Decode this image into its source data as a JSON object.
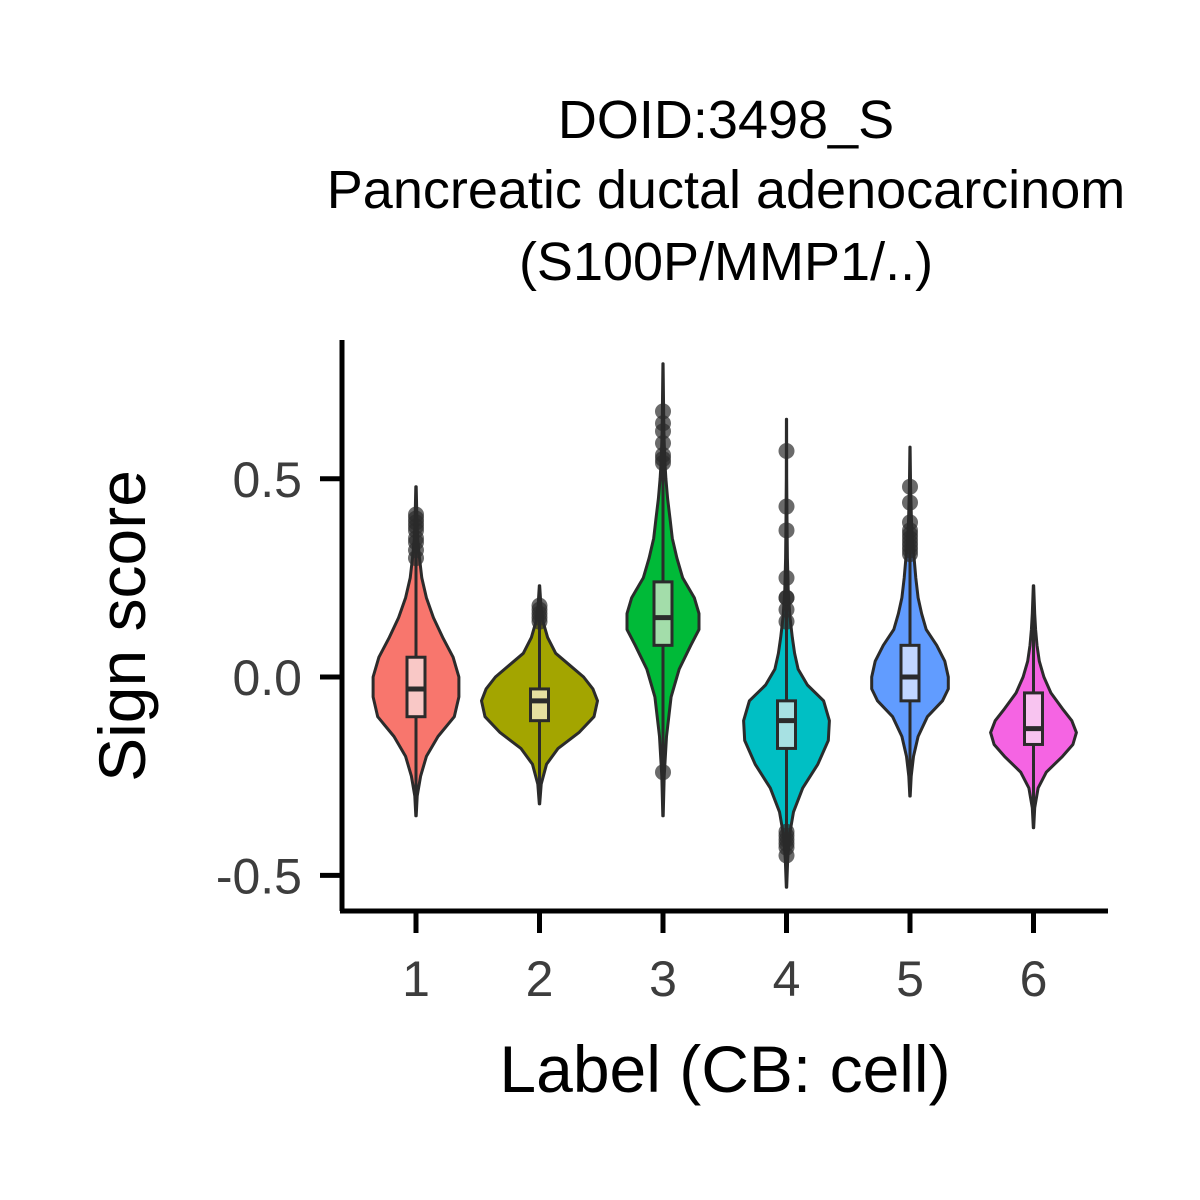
{
  "chart_data": {
    "type": "violin",
    "title": [
      "DOID:3498_S",
      "Pancreatic ductal adenocarcinom",
      "(S100P/MMP1/..)"
    ],
    "xlabel": "Label (CB: cell)",
    "ylabel": "Sign score",
    "ylim": [
      -0.59,
      0.85
    ],
    "yticks": [
      -0.5,
      0.0,
      0.5
    ],
    "ytick_labels": [
      "-0.5",
      "0.0",
      "0.5"
    ],
    "categories": [
      "1",
      "2",
      "3",
      "4",
      "5",
      "6"
    ],
    "grid": false,
    "legend": "none",
    "series": [
      {
        "category": "1",
        "color": "#F8766D",
        "box_fill": "#F9C8C6",
        "min": -0.35,
        "max": 0.48,
        "q1": -0.1,
        "median": -0.03,
        "q3": 0.05,
        "whisker_low": -0.3,
        "whisker_high": 0.28,
        "density": [
          [
            -0.35,
            0.002
          ],
          [
            -0.3,
            0.01
          ],
          [
            -0.25,
            0.04
          ],
          [
            -0.2,
            0.09
          ],
          [
            -0.15,
            0.19
          ],
          [
            -0.1,
            0.33
          ],
          [
            -0.05,
            0.37
          ],
          [
            0.0,
            0.37
          ],
          [
            0.05,
            0.32
          ],
          [
            0.1,
            0.23
          ],
          [
            0.15,
            0.15
          ],
          [
            0.2,
            0.09
          ],
          [
            0.25,
            0.05
          ],
          [
            0.3,
            0.03
          ],
          [
            0.35,
            0.015
          ],
          [
            0.4,
            0.008
          ],
          [
            0.48,
            0.002
          ]
        ],
        "outliers": [
          0.3,
          0.32,
          0.34,
          0.35,
          0.37,
          0.38,
          0.39,
          0.4,
          0.41
        ]
      },
      {
        "category": "2",
        "color": "#A3A500",
        "box_fill": "#E6E0A0",
        "min": -0.32,
        "max": 0.23,
        "q1": -0.11,
        "median": -0.06,
        "q3": -0.03,
        "whisker_low": -0.24,
        "whisker_high": 0.14,
        "density": [
          [
            -0.32,
            0.002
          ],
          [
            -0.27,
            0.015
          ],
          [
            -0.22,
            0.06
          ],
          [
            -0.18,
            0.16
          ],
          [
            -0.14,
            0.34
          ],
          [
            -0.1,
            0.47
          ],
          [
            -0.06,
            0.5
          ],
          [
            -0.03,
            0.46
          ],
          [
            0.0,
            0.38
          ],
          [
            0.03,
            0.26
          ],
          [
            0.06,
            0.14
          ],
          [
            0.1,
            0.07
          ],
          [
            0.14,
            0.03
          ],
          [
            0.18,
            0.012
          ],
          [
            0.23,
            0.002
          ]
        ],
        "outliers": [
          0.14,
          0.15,
          0.16,
          0.17,
          0.18
        ]
      },
      {
        "category": "3",
        "color": "#00BA38",
        "box_fill": "#A3DDAA",
        "min": -0.35,
        "max": 0.79,
        "q1": 0.08,
        "median": 0.15,
        "q3": 0.24,
        "whisker_low": -0.14,
        "whisker_high": 0.5,
        "density": [
          [
            -0.35,
            0.002
          ],
          [
            -0.25,
            0.01
          ],
          [
            -0.15,
            0.03
          ],
          [
            -0.05,
            0.07
          ],
          [
            0.02,
            0.14
          ],
          [
            0.08,
            0.24
          ],
          [
            0.12,
            0.31
          ],
          [
            0.16,
            0.31
          ],
          [
            0.2,
            0.27
          ],
          [
            0.25,
            0.17
          ],
          [
            0.3,
            0.12
          ],
          [
            0.35,
            0.08
          ],
          [
            0.4,
            0.06
          ],
          [
            0.45,
            0.04
          ],
          [
            0.5,
            0.025
          ],
          [
            0.55,
            0.015
          ],
          [
            0.62,
            0.008
          ],
          [
            0.7,
            0.004
          ],
          [
            0.79,
            0.001
          ]
        ],
        "outliers": [
          -0.24,
          0.54,
          0.55,
          0.56,
          0.59,
          0.62,
          0.64,
          0.67
        ]
      },
      {
        "category": "4",
        "color": "#00BFC4",
        "box_fill": "#A7E1E3",
        "min": -0.53,
        "max": 0.65,
        "q1": -0.18,
        "median": -0.11,
        "q3": -0.06,
        "whisker_low": -0.36,
        "whisker_high": 0.12,
        "density": [
          [
            -0.53,
            0.002
          ],
          [
            -0.46,
            0.01
          ],
          [
            -0.4,
            0.025
          ],
          [
            -0.34,
            0.06
          ],
          [
            -0.28,
            0.14
          ],
          [
            -0.22,
            0.27
          ],
          [
            -0.16,
            0.36
          ],
          [
            -0.11,
            0.37
          ],
          [
            -0.06,
            0.32
          ],
          [
            -0.02,
            0.18
          ],
          [
            0.02,
            0.1
          ],
          [
            0.06,
            0.07
          ],
          [
            0.1,
            0.05
          ],
          [
            0.15,
            0.03
          ],
          [
            0.22,
            0.015
          ],
          [
            0.3,
            0.008
          ],
          [
            0.4,
            0.004
          ],
          [
            0.5,
            0.002
          ],
          [
            0.65,
            0.001
          ]
        ],
        "outliers": [
          -0.45,
          -0.43,
          -0.42,
          -0.41,
          -0.4,
          -0.39,
          0.14,
          0.17,
          0.2,
          0.2,
          0.25,
          0.37,
          0.43,
          0.57
        ]
      },
      {
        "category": "5",
        "color": "#619CFF",
        "box_fill": "#C1D6FF",
        "min": -0.3,
        "max": 0.58,
        "q1": -0.06,
        "median": 0.0,
        "q3": 0.08,
        "whisker_low": -0.2,
        "whisker_high": 0.3,
        "density": [
          [
            -0.3,
            0.002
          ],
          [
            -0.25,
            0.01
          ],
          [
            -0.2,
            0.03
          ],
          [
            -0.15,
            0.07
          ],
          [
            -0.1,
            0.15
          ],
          [
            -0.06,
            0.28
          ],
          [
            -0.03,
            0.33
          ],
          [
            0.0,
            0.33
          ],
          [
            0.04,
            0.3
          ],
          [
            0.08,
            0.23
          ],
          [
            0.12,
            0.14
          ],
          [
            0.16,
            0.1
          ],
          [
            0.2,
            0.07
          ],
          [
            0.25,
            0.05
          ],
          [
            0.3,
            0.035
          ],
          [
            0.35,
            0.02
          ],
          [
            0.4,
            0.012
          ],
          [
            0.48,
            0.005
          ],
          [
            0.58,
            0.001
          ]
        ],
        "outliers": [
          0.31,
          0.32,
          0.33,
          0.34,
          0.35,
          0.36,
          0.37,
          0.39,
          0.44,
          0.48
        ]
      },
      {
        "category": "6",
        "color": "#F564E3",
        "box_fill": "#F8C4F0",
        "min": -0.38,
        "max": 0.23,
        "q1": -0.17,
        "median": -0.13,
        "q3": -0.04,
        "whisker_low": -0.22,
        "whisker_high": 0.08,
        "density": [
          [
            -0.38,
            0.002
          ],
          [
            -0.33,
            0.01
          ],
          [
            -0.28,
            0.04
          ],
          [
            -0.24,
            0.11
          ],
          [
            -0.2,
            0.25
          ],
          [
            -0.17,
            0.34
          ],
          [
            -0.14,
            0.37
          ],
          [
            -0.11,
            0.33
          ],
          [
            -0.08,
            0.25
          ],
          [
            -0.04,
            0.15
          ],
          [
            0.0,
            0.09
          ],
          [
            0.04,
            0.05
          ],
          [
            0.08,
            0.03
          ],
          [
            0.12,
            0.018
          ],
          [
            0.16,
            0.01
          ],
          [
            0.23,
            0.002
          ]
        ],
        "outliers": []
      }
    ]
  }
}
